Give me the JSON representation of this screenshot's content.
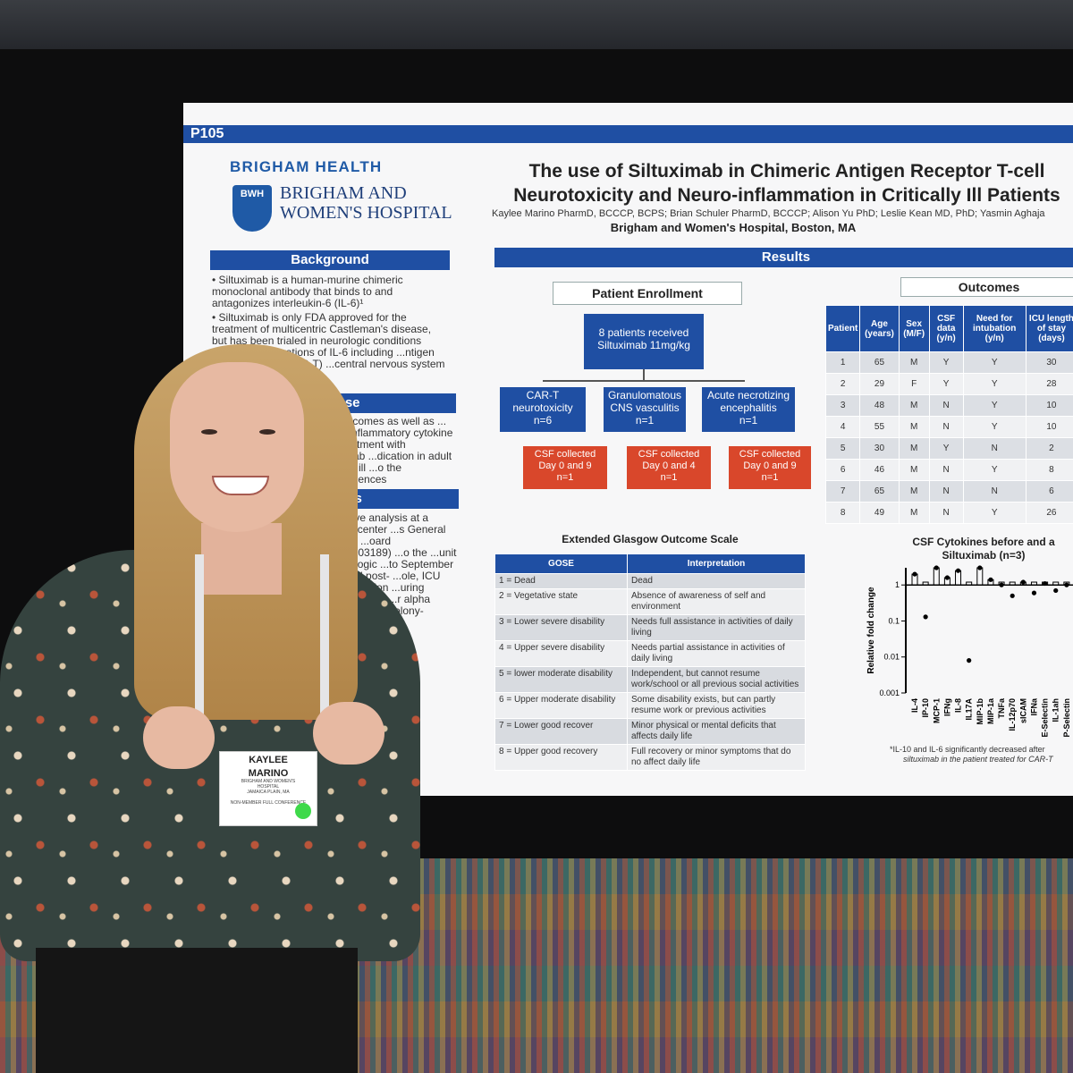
{
  "poster": {
    "code": "P105",
    "logo": {
      "brigham_health": "BRIGHAM HEALTH",
      "bwh": "BWH",
      "line1": "BRIGHAM AND",
      "line2": "WOMEN'S HOSPITAL"
    },
    "title_line1": "The use of Siltuximab in Chimeric Antigen Receptor T-cell",
    "title_line2": "Neurotoxicity and Neuro-inflammation in Critically Ill Patients",
    "authors": "Kaylee Marino PharmD, BCCCP, BCPS; Brian Schuler PharmD, BCCCP; Alison Yu PhD; Leslie Kean MD, PhD; Yasmin Aghaja",
    "affiliation": "Brigham and Women's Hospital, Boston, MA",
    "background": {
      "header": "Background",
      "p1": "• Siltuximab is a human-murine chimeric monoclonal antibody that binds to and antagonizes interleukin-6 (IL-6)¹",
      "p2": "• Siltuximab is only FDA approved for the treatment of multicentric Castleman's disease, but has been trialed in neurologic conditions ...ated concentrations of IL-6 including ...ntigen receptor T-cell (CAR-T) ...central nervous system vasculitis, ...itis"
    },
    "purpose": {
      "header": "Purpose",
      "text": "...al outcomes as well as ...(CSF) inflammatory cytokine ...st-treatment with siltuximab ...dication in adult critically ill ...o the neurosciences"
    },
    "methods": {
      "header": "Methods",
      "text": "...spective analysis at a ...edical center  ...s General Brigham ...oard (2020P003189)  ...o the ...unit who ...ologic ...to September  ...F ...and post- ...ole, ICU ...for intubation ...uring hospitalization  ...r alpha  ...macrophage colony-"
    },
    "results_header": "Results",
    "enrollment": {
      "header": "Patient Enrollment",
      "top": "8 patients received Siltuximab 11mg/kg",
      "groups": [
        {
          "name": "CAR-T neurotoxicity",
          "n": "n=6",
          "csf": "CSF collected",
          "days": "Day 0 and 9",
          "cn": "n=1"
        },
        {
          "name": "Granulomatous CNS vasculitis",
          "n": "n=1",
          "csf": "CSF collected",
          "days": "Day 0 and 4",
          "cn": "n=1"
        },
        {
          "name": "Acute necrotizing encephalitis",
          "n": "n=1",
          "csf": "CSF collected",
          "days": "Day 0 and 9",
          "cn": "n=1"
        }
      ]
    },
    "outcomes": {
      "header": "Outcomes",
      "columns": [
        "Patient",
        "Age (years)",
        "Sex (M/F)",
        "CSF data (y/n)",
        "Need for intubation (y/n)",
        "ICU length of stay (days)"
      ],
      "rows": [
        [
          "1",
          "65",
          "M",
          "Y",
          "Y",
          "30"
        ],
        [
          "2",
          "29",
          "F",
          "Y",
          "Y",
          "28"
        ],
        [
          "3",
          "48",
          "M",
          "N",
          "Y",
          "10"
        ],
        [
          "4",
          "55",
          "M",
          "N",
          "Y",
          "10"
        ],
        [
          "5",
          "30",
          "M",
          "Y",
          "N",
          "2"
        ],
        [
          "6",
          "46",
          "M",
          "N",
          "Y",
          "8"
        ],
        [
          "7",
          "65",
          "M",
          "N",
          "N",
          "6"
        ],
        [
          "8",
          "49",
          "M",
          "N",
          "Y",
          "26"
        ]
      ]
    },
    "gose": {
      "title": "Extended Glasgow Outcome Scale",
      "columns": [
        "GOSE",
        "Interpretation"
      ],
      "rows": [
        [
          "1 = Dead",
          "Dead"
        ],
        [
          "2 = Vegetative state",
          "Absence of awareness of self and environment"
        ],
        [
          "3 = Lower severe disability",
          "Needs full assistance in activities of daily living"
        ],
        [
          "4 = Upper severe disability",
          "Needs partial assistance in activities of daily living"
        ],
        [
          "5 = lower moderate disability",
          "Independent, but cannot resume work/school or all previous social activities"
        ],
        [
          "6 = Upper moderate disability",
          "Some disability exists, but can partly resume work or previous activities"
        ],
        [
          "7 = Lower good recover",
          "Minor physical or mental deficits that affects daily life"
        ],
        [
          "8 = Upper good recovery",
          "Full recovery or minor symptoms that do no affect daily life"
        ]
      ]
    },
    "cytokines": {
      "title_line1": "CSF Cytokines before and a",
      "title_line2": "Siltuximab (n=3)",
      "ylabel": "Relative fold change",
      "yticks": [
        "1",
        "0.1",
        "0.01",
        "0.001"
      ],
      "xlabels": [
        "IL-4",
        "IP-10",
        "MCP-1",
        "IFNg",
        "IL-8",
        "IL17A",
        "MIP-1b",
        "MIP-1a",
        "TNFa",
        "IL-12p70",
        "sICAM",
        "IFNa",
        "E-Selectin",
        "IL-1ah",
        "P-Selectin"
      ],
      "footnote1": "*IL-10 and IL-6 significantly decreased after",
      "footnote2": "siltuximab in the patient treated for CAR-T"
    }
  },
  "badge": {
    "first": "KAYLEE",
    "last": "MARINO",
    "org1": "BRIGHAM AND WOMEN'S",
    "org2": "HOSPITAL",
    "city": "JAMAICA PLAIN, MA",
    "reg": "NON-MEMBER FULL CONFERENCE"
  },
  "chart_data": {
    "type": "scatter",
    "title": "CSF Cytokines before and a Siltuximab (n=3)",
    "ylabel": "Relative fold change",
    "yscale": "log",
    "ylim": [
      0.001,
      3
    ],
    "categories": [
      "IL-4",
      "IP-10",
      "MCP-1",
      "IFNg",
      "IL-8",
      "IL17A",
      "MIP-1b",
      "MIP-1a",
      "TNFa",
      "IL-12p70",
      "sICAM",
      "IFNa",
      "E-Selectin",
      "IL-1ah",
      "P-Selectin"
    ],
    "series": [
      {
        "values": [
          2.0,
          0.13,
          3.0,
          1.6,
          2.5,
          0.008,
          3.0,
          1.4,
          1.0,
          0.5,
          1.2,
          0.6,
          1.1,
          0.7,
          1.0
        ]
      }
    ]
  }
}
